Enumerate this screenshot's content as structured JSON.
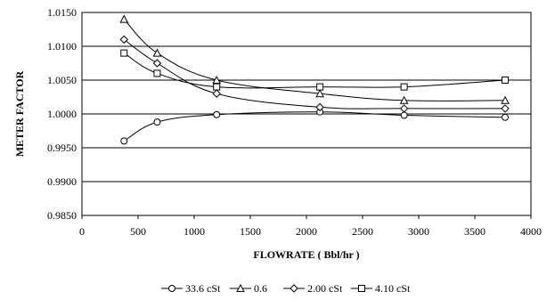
{
  "chart_data": {
    "type": "line",
    "title": "",
    "xlabel": "FLOWRATE ( Bbl/hr )",
    "ylabel": "METER FACTOR",
    "xlim": [
      0,
      4000
    ],
    "ylim": [
      0.985,
      1.015
    ],
    "xticks": [
      "0",
      "500",
      "1000",
      "1500",
      "2000",
      "2500",
      "3000",
      "3500",
      "4000"
    ],
    "yticks": [
      "0.9850",
      "0.9900",
      "0.9950",
      "1.0000",
      "1.0050",
      "1.0100",
      "1.0150"
    ],
    "grid": "horizontal",
    "legend_position": "bottom",
    "x": [
      375,
      670,
      1200,
      2120,
      2870,
      3770
    ],
    "series": [
      {
        "name": "33.6 cSt",
        "marker": "circle",
        "values": [
          0.996,
          0.9988,
          0.9999,
          1.0003,
          0.9998,
          0.9995
        ]
      },
      {
        "name": "0.6",
        "marker": "triangle",
        "values": [
          1.014,
          1.009,
          1.005,
          1.003,
          1.002,
          1.002
        ]
      },
      {
        "name": "2.00 cSt",
        "marker": "diamond",
        "values": [
          1.011,
          1.0075,
          1.003,
          1.001,
          1.0008,
          1.0008
        ]
      },
      {
        "name": "4.10 cSt",
        "marker": "square",
        "values": [
          1.009,
          1.006,
          1.004,
          1.004,
          1.004,
          1.005
        ]
      }
    ]
  }
}
